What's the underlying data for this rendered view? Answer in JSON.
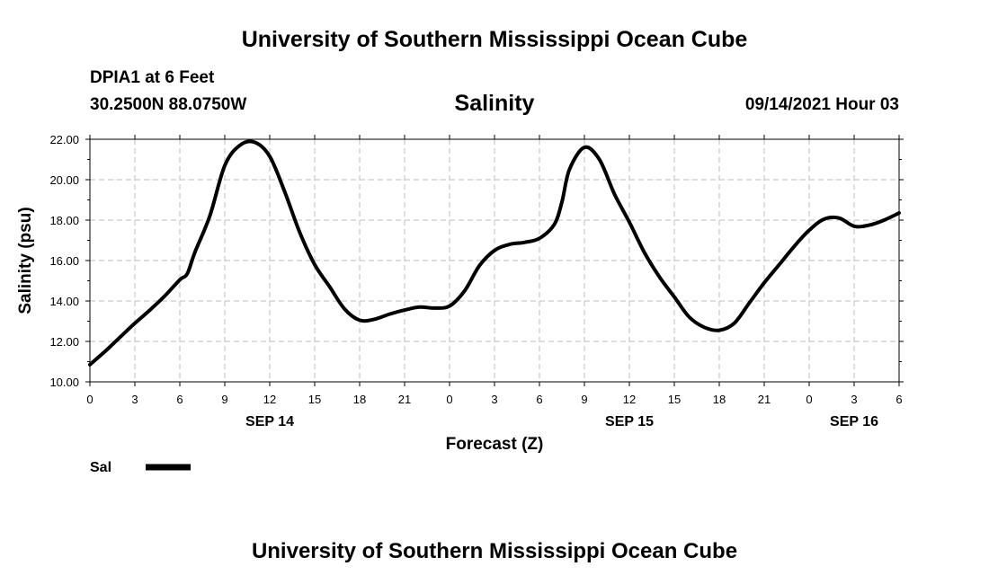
{
  "header": {
    "title_top": "University of Southern Mississippi Ocean Cube",
    "station": "DPIA1 at 6 Feet",
    "coords": "30.2500N  88.0750W",
    "chart_title": "Salinity",
    "run_time": "09/14/2021 Hour 03",
    "title_bottom": "University of Southern Mississippi Ocean Cube"
  },
  "chart_data": {
    "type": "line",
    "title": "Salinity",
    "xlabel": "Forecast (Z)",
    "ylabel": "Salinity (psu)",
    "ylim": [
      10,
      22
    ],
    "xlim": [
      0,
      54
    ],
    "y_ticks": [
      "10.00",
      "12.00",
      "14.00",
      "16.00",
      "18.00",
      "20.00",
      "22.00"
    ],
    "x_ticks": [
      "0",
      "3",
      "6",
      "9",
      "12",
      "15",
      "18",
      "21",
      "0",
      "3",
      "6",
      "9",
      "12",
      "15",
      "18",
      "21",
      "0",
      "3",
      "6"
    ],
    "date_labels": [
      {
        "label": "SEP 14",
        "x_hours": 12
      },
      {
        "label": "SEP 15",
        "x_hours": 36
      },
      {
        "label": "SEP 16",
        "x_hours": 51
      }
    ],
    "grid": true,
    "legend": {
      "position": "bottom-left"
    },
    "series": [
      {
        "name": "Sal",
        "color": "#000000",
        "x": [
          0,
          1,
          2,
          3,
          4,
          5,
          6,
          6.5,
          7,
          8,
          9,
          10,
          11,
          12,
          13,
          14,
          15,
          16,
          17,
          18,
          19,
          20,
          21,
          22,
          23,
          24,
          25,
          26,
          27,
          28,
          29,
          30,
          31,
          31.5,
          32,
          33,
          34,
          35,
          36,
          37,
          38,
          39,
          40,
          41,
          42,
          43,
          44,
          45,
          46,
          47,
          48,
          49,
          50,
          51,
          52,
          53,
          54
        ],
        "values": [
          10.85,
          11.5,
          12.2,
          12.9,
          13.55,
          14.25,
          15.05,
          15.35,
          16.4,
          18.2,
          20.7,
          21.7,
          21.85,
          21.15,
          19.4,
          17.4,
          15.8,
          14.7,
          13.6,
          13.05,
          13.1,
          13.35,
          13.55,
          13.7,
          13.65,
          13.75,
          14.5,
          15.75,
          16.5,
          16.8,
          16.9,
          17.1,
          17.8,
          18.9,
          20.5,
          21.6,
          21.0,
          19.3,
          17.9,
          16.4,
          15.2,
          14.2,
          13.2,
          12.7,
          12.55,
          12.9,
          13.9,
          14.9,
          15.8,
          16.7,
          17.5,
          18.05,
          18.1,
          17.7,
          17.75,
          18.0,
          18.35
        ]
      }
    ]
  }
}
